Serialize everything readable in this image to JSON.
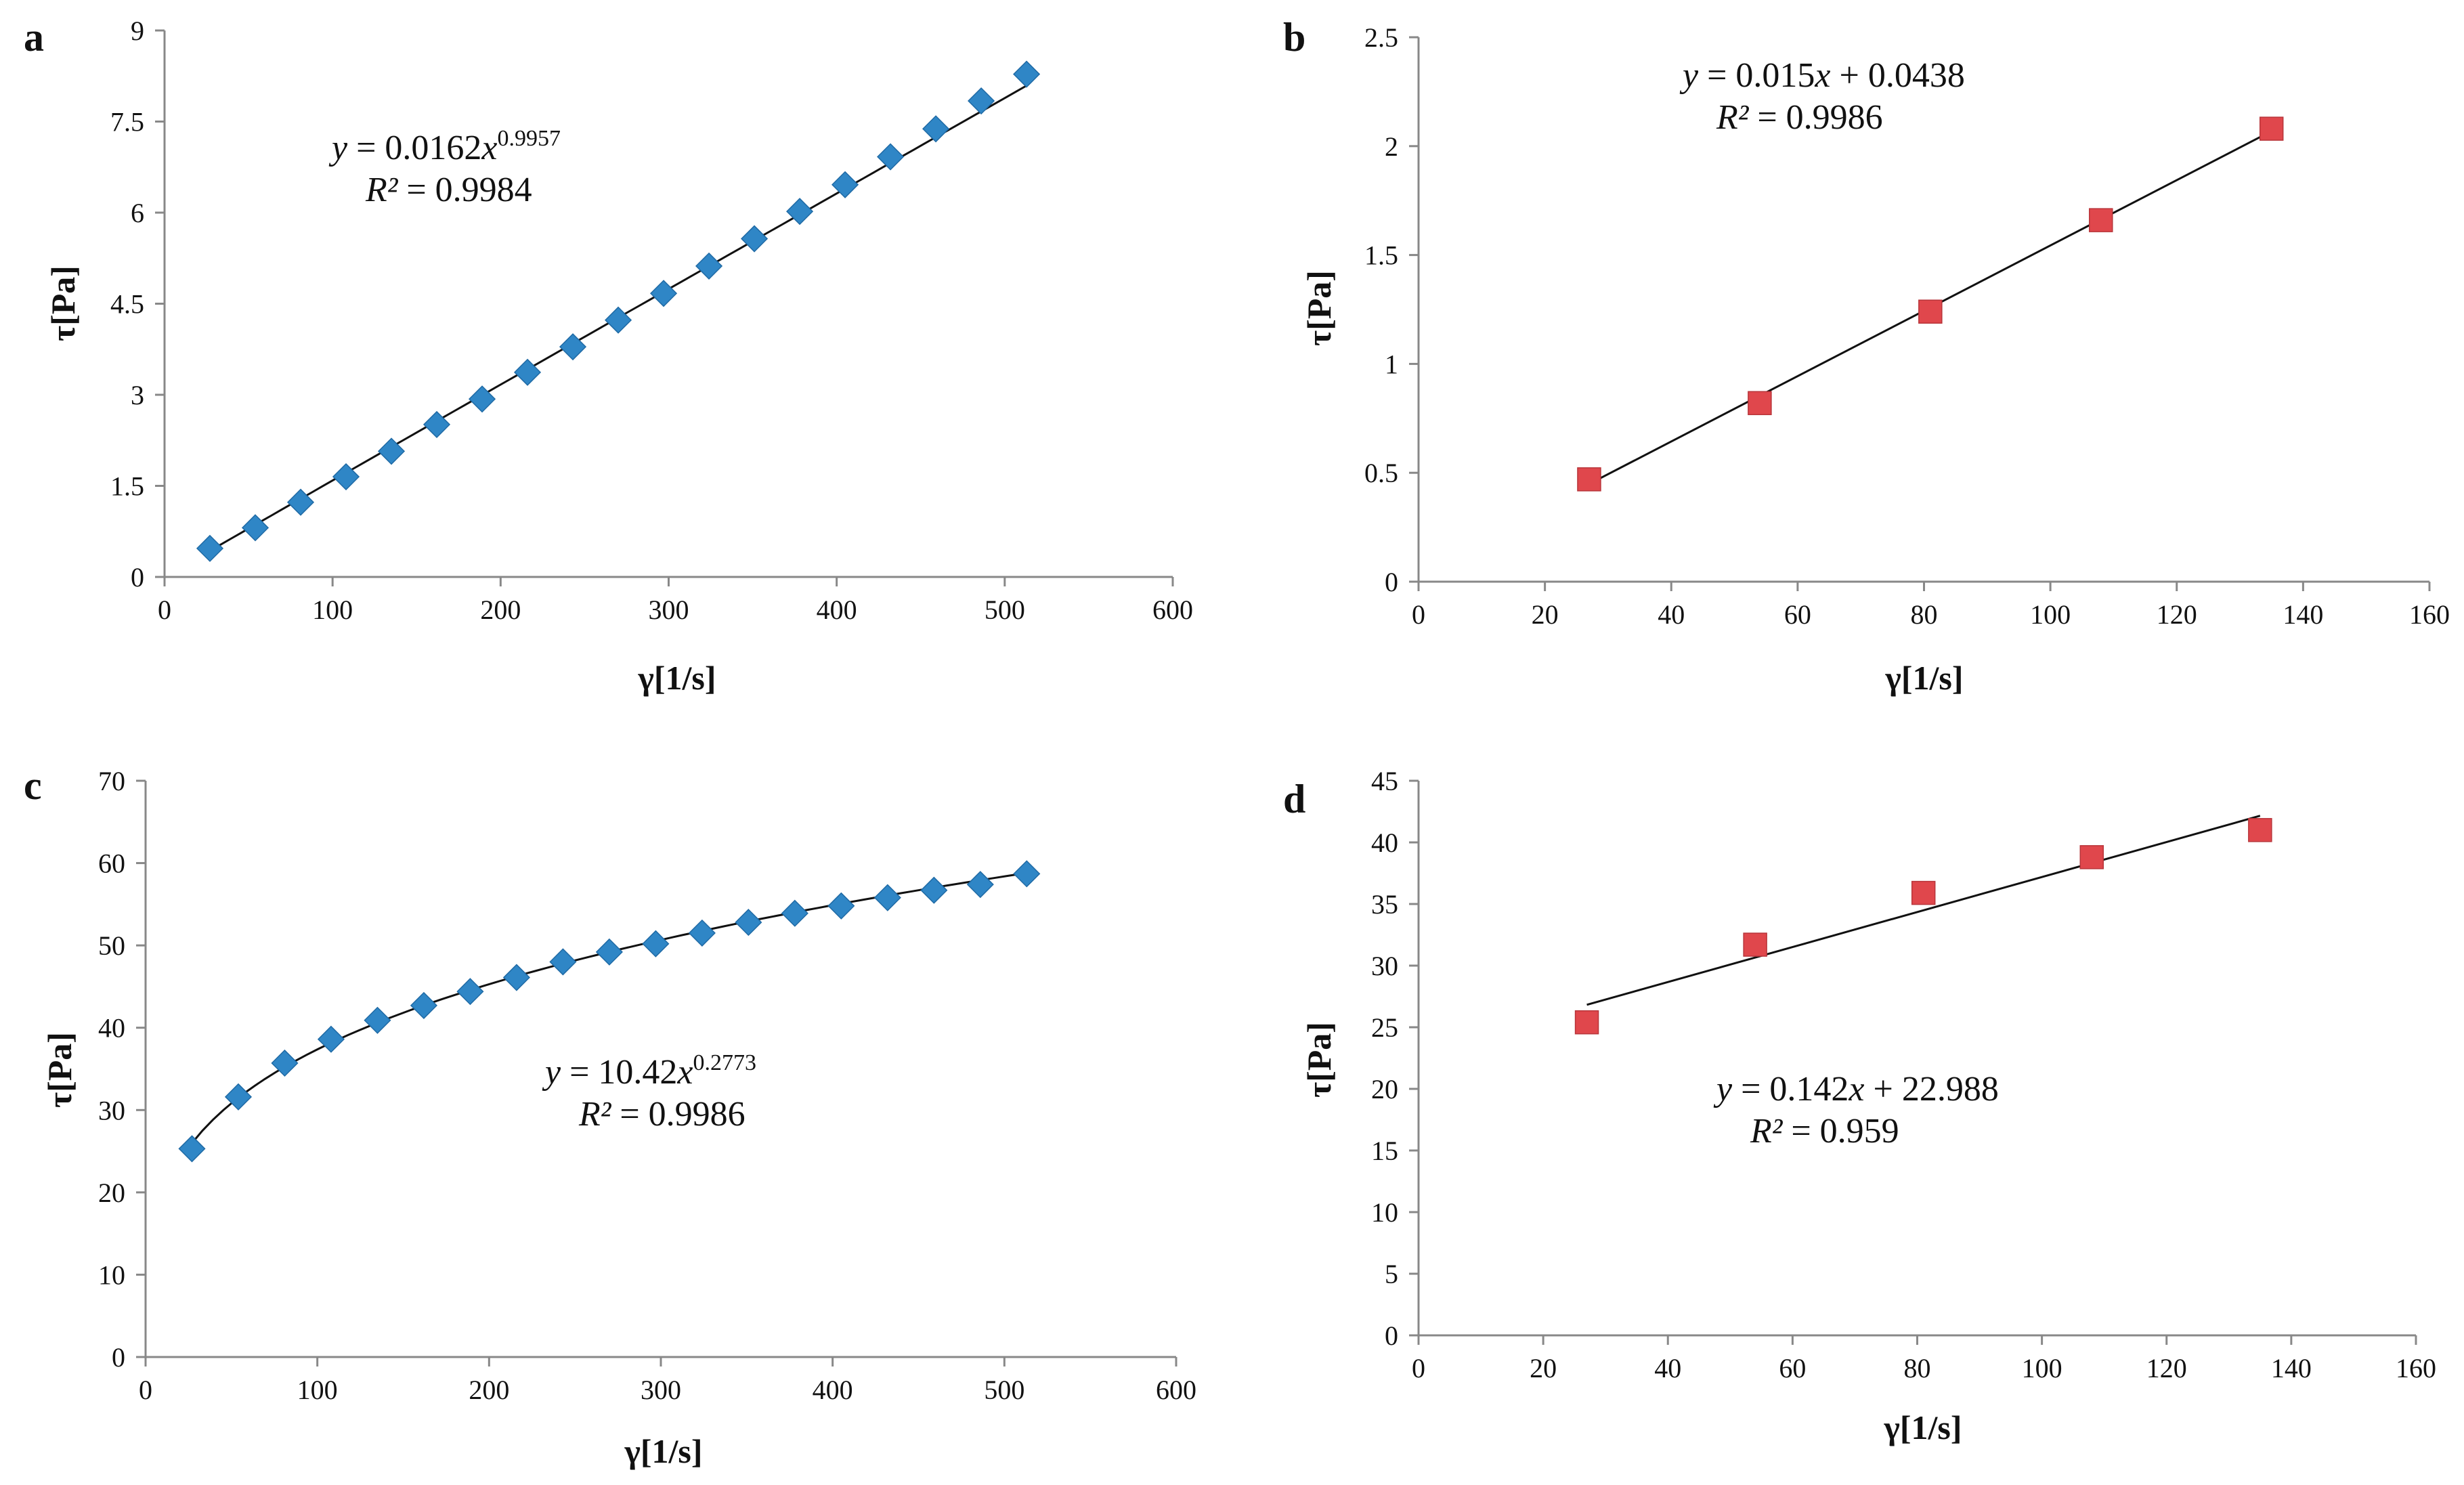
{
  "chart_data": [
    {
      "panel": "a",
      "type": "scatter",
      "marker": "diamond",
      "marker_color": "#2f86c6",
      "xlabel": "γ[1/s]",
      "ylabel": "τ[Pa]",
      "xlim": [
        0,
        600
      ],
      "ylim": [
        0,
        9
      ],
      "xticks": [
        "0",
        "100",
        "200",
        "300",
        "400",
        "500",
        "600"
      ],
      "yticks": [
        "0",
        "1.5",
        "3",
        "4.5",
        "6",
        "7.5",
        "9"
      ],
      "x": [
        27,
        54,
        81,
        108,
        135,
        162,
        189,
        216,
        243,
        270,
        297,
        324,
        351,
        378,
        405,
        432,
        459,
        486,
        513
      ],
      "y": [
        0.47,
        0.81,
        1.23,
        1.65,
        2.07,
        2.51,
        2.93,
        3.37,
        3.79,
        4.23,
        4.67,
        5.12,
        5.57,
        6.02,
        6.46,
        6.92,
        7.38,
        7.84,
        8.28
      ],
      "trendline": {
        "kind": "power",
        "a": 0.0162,
        "b": 0.9957
      },
      "equation": {
        "y_label": "y",
        "eq_text": " = 0.0162",
        "x_label": "x",
        "exponent": "0.9957",
        "r2_label": "R²",
        "r2_text": " = 0.9984"
      }
    },
    {
      "panel": "b",
      "type": "scatter",
      "marker": "square",
      "marker_color": "#e0474c",
      "xlabel": "γ[1/s]",
      "ylabel": "τ[Pa]",
      "xlim": [
        0,
        160
      ],
      "ylim": [
        0,
        2.5
      ],
      "xticks": [
        "0",
        "20",
        "40",
        "60",
        "80",
        "100",
        "120",
        "140",
        "160"
      ],
      "yticks": [
        "0",
        "0.5",
        "1",
        "1.5",
        "2",
        "2.5"
      ],
      "x": [
        27,
        54,
        81,
        108,
        135
      ],
      "y": [
        0.47,
        0.82,
        1.24,
        1.66,
        2.08
      ],
      "trendline": {
        "kind": "linear",
        "m": 0.015,
        "c": 0.0438
      },
      "equation": {
        "y_label": "y",
        "eq_text": " = 0.015",
        "x_label": "x",
        "eq_tail": " + 0.0438",
        "r2_label": "R²",
        "r2_text": " = 0.9986"
      }
    },
    {
      "panel": "c",
      "type": "scatter",
      "marker": "diamond",
      "marker_color": "#2f86c6",
      "xlabel": "γ[1/s]",
      "ylabel": "τ[Pa]",
      "xlim": [
        0,
        600
      ],
      "ylim": [
        0,
        70
      ],
      "xticks": [
        "0",
        "100",
        "200",
        "300",
        "400",
        "500",
        "600"
      ],
      "yticks": [
        "0",
        "10",
        "20",
        "30",
        "40",
        "50",
        "60",
        "70"
      ],
      "x": [
        27,
        54,
        81,
        108,
        135,
        162,
        189,
        216,
        243,
        270,
        297,
        324,
        351,
        378,
        405,
        432,
        459,
        486,
        513
      ],
      "y": [
        25.3,
        31.6,
        35.7,
        38.6,
        40.9,
        42.7,
        44.4,
        46.1,
        48.0,
        49.2,
        50.2,
        51.5,
        52.8,
        53.9,
        54.8,
        55.8,
        56.7,
        57.4,
        58.7
      ],
      "trendline": {
        "kind": "power",
        "a": 10.42,
        "b": 0.2773
      },
      "equation": {
        "y_label": "y",
        "eq_text": " = 10.42",
        "x_label": "x",
        "exponent": "0.2773",
        "r2_label": "R²",
        "r2_text": " = 0.9986"
      }
    },
    {
      "panel": "d",
      "type": "scatter",
      "marker": "square",
      "marker_color": "#e0474c",
      "xlabel": "γ[1/s]",
      "ylabel": "τ[Pa]",
      "xlim": [
        0,
        160
      ],
      "ylim": [
        0,
        45
      ],
      "xticks": [
        "0",
        "20",
        "40",
        "60",
        "80",
        "100",
        "120",
        "140",
        "160"
      ],
      "yticks": [
        "0",
        "5",
        "10",
        "15",
        "20",
        "25",
        "30",
        "35",
        "40",
        "45"
      ],
      "x": [
        27,
        54,
        81,
        108,
        135
      ],
      "y": [
        25.4,
        31.7,
        35.9,
        38.8,
        41.0
      ],
      "trendline": {
        "kind": "linear",
        "m": 0.142,
        "c": 22.988
      },
      "equation": {
        "y_label": "y",
        "eq_text": " = 0.142",
        "x_label": "x",
        "eq_tail": " + 22.988",
        "r2_label": "R²",
        "r2_text": " = 0.959"
      }
    }
  ]
}
